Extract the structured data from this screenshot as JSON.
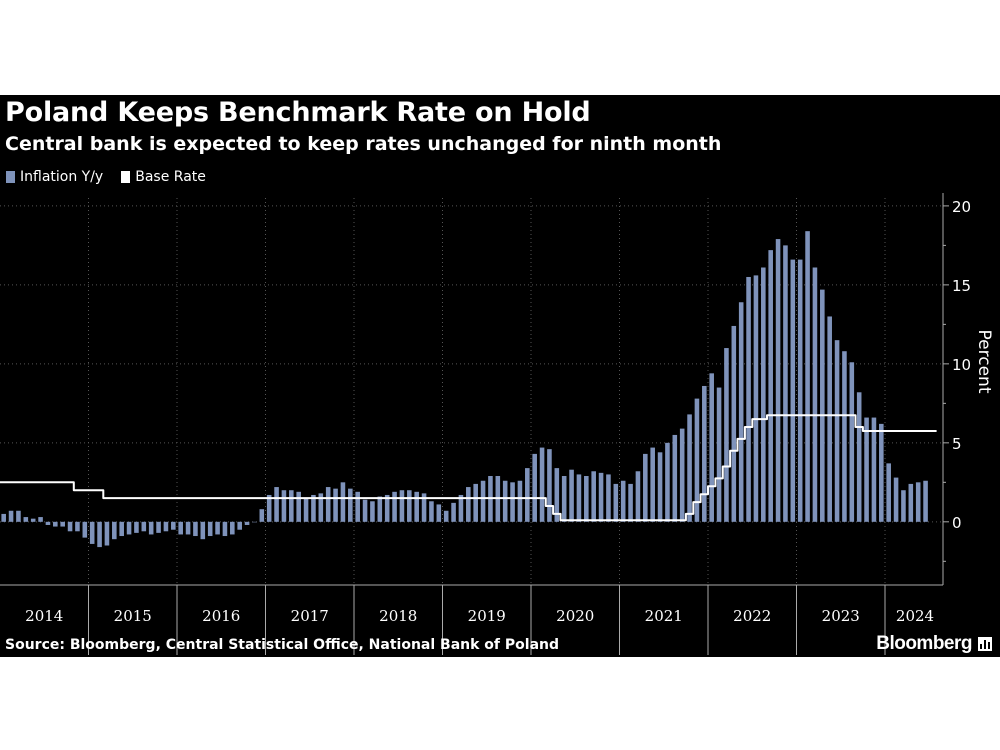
{
  "header": {
    "title": "Poland Keeps Benchmark Rate on Hold",
    "subtitle": "Central bank is expected to keep rates unchanged for ninth month"
  },
  "footer": {
    "source": "Source: Bloomberg, Central Statistical Office, National Bank of Poland",
    "brand": "Bloomberg"
  },
  "colors": {
    "background": "#000000",
    "bars": "#7f93bb",
    "line": "#ffffff",
    "grid": "#555555"
  },
  "chart_data": {
    "type": "bar",
    "ylabel": "Percent",
    "ylim": [
      -4,
      20.5
    ],
    "yticks": [
      0,
      5,
      10,
      15,
      20
    ],
    "grid": true,
    "legend_position": "top-left",
    "years": [
      "2014",
      "2015",
      "2016",
      "2017",
      "2018",
      "2019",
      "2020",
      "2021",
      "2022",
      "2023",
      "2024"
    ],
    "series": [
      {
        "name": "Inflation Y/y",
        "type": "bar",
        "start": "2014-01",
        "values": [
          0.5,
          0.7,
          0.7,
          0.3,
          0.2,
          0.3,
          -0.2,
          -0.3,
          -0.3,
          -0.6,
          -0.6,
          -1.0,
          -1.4,
          -1.6,
          -1.5,
          -1.1,
          -0.9,
          -0.8,
          -0.7,
          -0.6,
          -0.8,
          -0.7,
          -0.6,
          -0.5,
          -0.8,
          -0.8,
          -0.9,
          -1.1,
          -0.9,
          -0.8,
          -0.9,
          -0.8,
          -0.5,
          -0.2,
          0.0,
          0.8,
          1.7,
          2.2,
          2.0,
          2.0,
          1.9,
          1.5,
          1.7,
          1.8,
          2.2,
          2.1,
          2.5,
          2.1,
          1.9,
          1.4,
          1.3,
          1.6,
          1.7,
          1.9,
          2.0,
          2.0,
          1.9,
          1.8,
          1.3,
          1.1,
          0.7,
          1.2,
          1.7,
          2.2,
          2.4,
          2.6,
          2.9,
          2.9,
          2.6,
          2.5,
          2.6,
          3.4,
          4.3,
          4.7,
          4.6,
          3.4,
          2.9,
          3.3,
          3.0,
          2.9,
          3.2,
          3.1,
          3.0,
          2.4,
          2.6,
          2.4,
          3.2,
          4.3,
          4.7,
          4.4,
          5.0,
          5.5,
          5.9,
          6.8,
          7.8,
          8.6,
          9.4,
          8.5,
          11.0,
          12.4,
          13.9,
          15.5,
          15.6,
          16.1,
          17.2,
          17.9,
          17.5,
          16.6,
          16.6,
          18.4,
          16.1,
          14.7,
          13.0,
          11.5,
          10.8,
          10.1,
          8.2,
          6.6,
          6.6,
          6.2,
          3.7,
          2.8,
          2.0,
          2.4,
          2.5,
          2.6
        ]
      },
      {
        "name": "Base Rate",
        "type": "line",
        "start": "2014-01",
        "values": [
          2.5,
          2.5,
          2.5,
          2.5,
          2.5,
          2.5,
          2.5,
          2.5,
          2.5,
          2.5,
          2.0,
          2.0,
          2.0,
          2.0,
          1.5,
          1.5,
          1.5,
          1.5,
          1.5,
          1.5,
          1.5,
          1.5,
          1.5,
          1.5,
          1.5,
          1.5,
          1.5,
          1.5,
          1.5,
          1.5,
          1.5,
          1.5,
          1.5,
          1.5,
          1.5,
          1.5,
          1.5,
          1.5,
          1.5,
          1.5,
          1.5,
          1.5,
          1.5,
          1.5,
          1.5,
          1.5,
          1.5,
          1.5,
          1.5,
          1.5,
          1.5,
          1.5,
          1.5,
          1.5,
          1.5,
          1.5,
          1.5,
          1.5,
          1.5,
          1.5,
          1.5,
          1.5,
          1.5,
          1.5,
          1.5,
          1.5,
          1.5,
          1.5,
          1.5,
          1.5,
          1.5,
          1.5,
          1.5,
          1.5,
          1.0,
          0.5,
          0.1,
          0.1,
          0.1,
          0.1,
          0.1,
          0.1,
          0.1,
          0.1,
          0.1,
          0.1,
          0.1,
          0.1,
          0.1,
          0.1,
          0.1,
          0.1,
          0.1,
          0.5,
          1.25,
          1.75,
          2.25,
          2.75,
          3.5,
          4.5,
          5.25,
          6.0,
          6.5,
          6.5,
          6.75,
          6.75,
          6.75,
          6.75,
          6.75,
          6.75,
          6.75,
          6.75,
          6.75,
          6.75,
          6.75,
          6.75,
          6.0,
          5.75,
          5.75,
          5.75,
          5.75,
          5.75,
          5.75,
          5.75,
          5.75,
          5.75,
          5.75
        ]
      }
    ]
  }
}
